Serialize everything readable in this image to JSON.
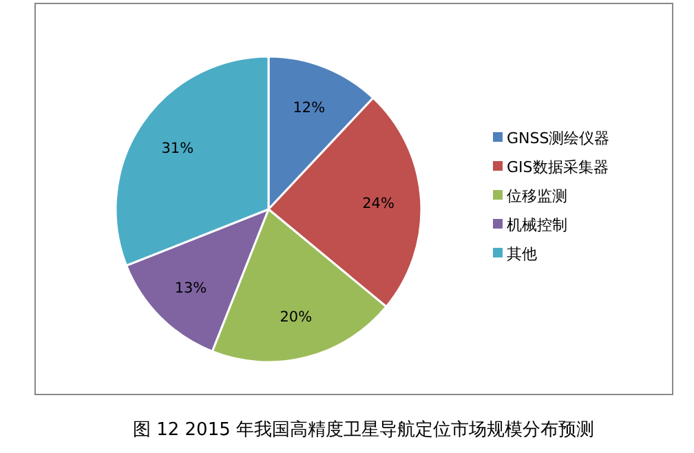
{
  "chart_data": {
    "type": "pie",
    "title": "图 12  2015 年我国高精度卫星导航定位市场规模分布预测",
    "categories": [
      "GNSS测绘仪器",
      "GIS数据采集器",
      "位移监测",
      "机械控制",
      "其他"
    ],
    "values": [
      12,
      24,
      20,
      13,
      31
    ],
    "value_labels": [
      "12%",
      "24%",
      "20%",
      "13%",
      "31%"
    ],
    "colors": [
      "#4f81bd",
      "#c0504d",
      "#9bbb59",
      "#8064a2",
      "#4bacc6"
    ],
    "legend": "right"
  }
}
